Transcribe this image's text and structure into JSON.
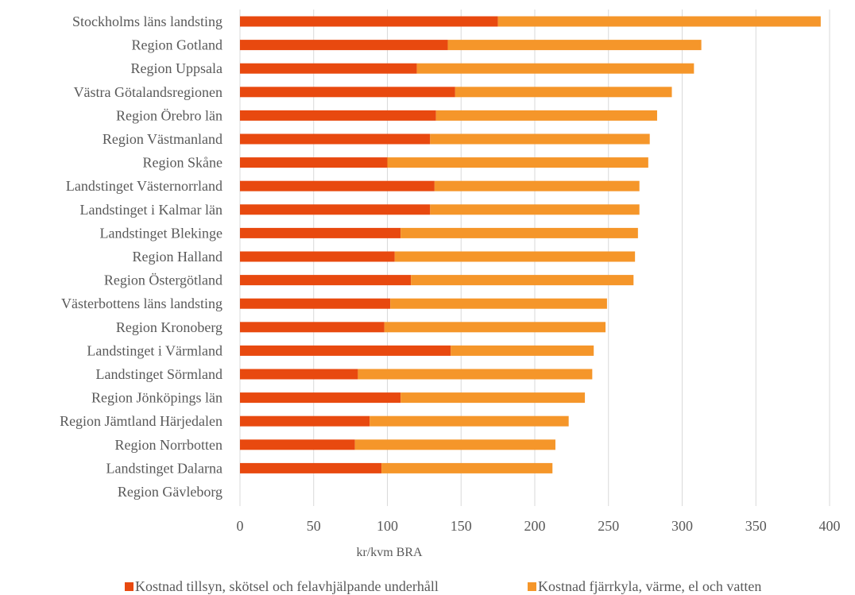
{
  "chart_data": {
    "type": "bar",
    "orientation": "horizontal",
    "stacked": true,
    "categories": [
      "Stockholms läns landsting",
      "Region Gotland",
      "Region Uppsala",
      "Västra Götalandsregionen",
      "Region Örebro län",
      "Region Västmanland",
      "Region Skåne",
      "Landstinget Västernorrland",
      "Landstinget i Kalmar län",
      "Landstinget Blekinge",
      "Region Halland",
      "Region Östergötland",
      "Västerbottens läns landsting",
      "Region Kronoberg",
      "Landstinget i Värmland",
      "Landstinget Sörmland",
      "Region Jönköpings län",
      "Region Jämtland Härjedalen",
      "Region Norrbotten",
      "Landstinget Dalarna",
      "Region Gävleborg"
    ],
    "series": [
      {
        "name": "Kostnad tillsyn, skötsel och felavhjälpande underhåll",
        "color": "#E8490F",
        "values": [
          175,
          141,
          120,
          146,
          133,
          129,
          100,
          132,
          129,
          109,
          105,
          116,
          102,
          98,
          143,
          80,
          109,
          88,
          78,
          96,
          0
        ]
      },
      {
        "name": "Kostnad fjärrkyla, värme, el och vatten",
        "color": "#F5962A",
        "values": [
          219,
          172,
          188,
          147,
          150,
          149,
          177,
          139,
          142,
          161,
          163,
          151,
          147,
          150,
          97,
          159,
          125,
          135,
          136,
          116,
          0
        ]
      }
    ],
    "xlabel": "kr/kvm BRA",
    "xlim": [
      0,
      400
    ],
    "xticks": [
      0,
      50,
      100,
      150,
      200,
      250,
      300,
      350,
      400
    ],
    "grid": "vertical",
    "legend": "bottom"
  }
}
